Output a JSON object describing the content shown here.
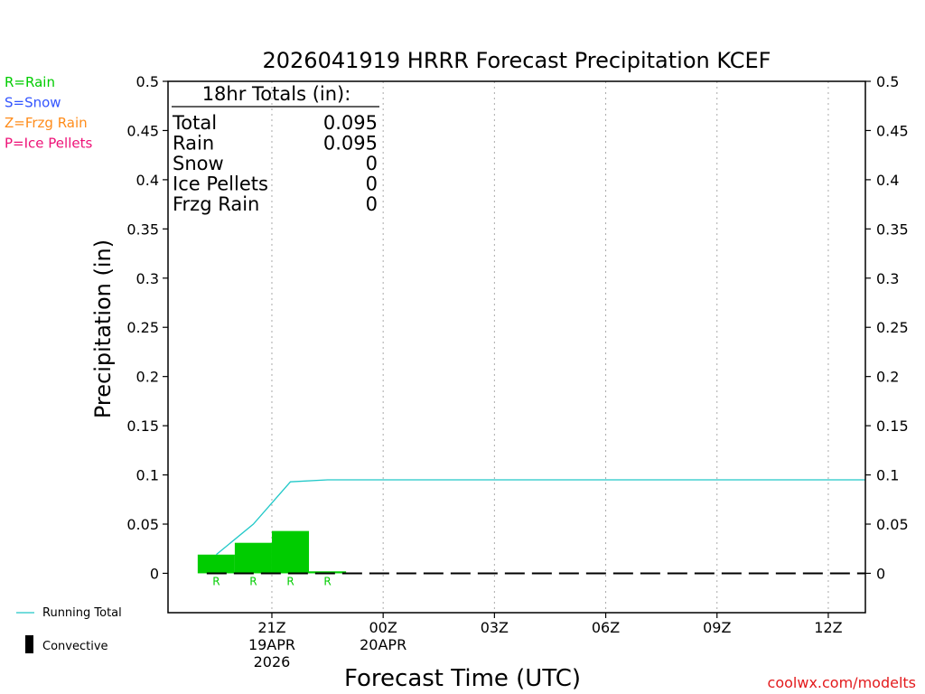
{
  "chart_data": {
    "type": "bar",
    "title": "2026041919 HRRR Forecast Precipitation KCEF",
    "xlabel": "Forecast Time (UTC)",
    "ylabel": "Precipitation (in)",
    "ylim": [
      -0.04,
      0.5
    ],
    "yticks": [
      0,
      0.05,
      0.1,
      0.15,
      0.2,
      0.25,
      0.3,
      0.35,
      0.4,
      0.45,
      0.5
    ],
    "ytick_labels": [
      "0",
      "0.05",
      "0.1",
      "0.15",
      "0.2",
      "0.25",
      "0.3",
      "0.35",
      "0.4",
      "0.45",
      "0.5"
    ],
    "x_unit": "hours after 19Z 19APR",
    "xlim": [
      -0.8,
      18
    ],
    "xticks": [
      {
        "hour": 2,
        "lines": [
          "21Z",
          "19APR",
          "2026"
        ]
      },
      {
        "hour": 5,
        "lines": [
          "00Z",
          "20APR"
        ]
      },
      {
        "hour": 8,
        "lines": [
          "03Z"
        ]
      },
      {
        "hour": 11,
        "lines": [
          "06Z"
        ]
      },
      {
        "hour": 14,
        "lines": [
          "09Z"
        ]
      },
      {
        "hour": 17,
        "lines": [
          "12Z"
        ]
      }
    ],
    "bars": [
      {
        "start": 0,
        "end": 1,
        "value": 0.019,
        "type": "R"
      },
      {
        "start": 1,
        "end": 2,
        "value": 0.031,
        "type": "R"
      },
      {
        "start": 2,
        "end": 3,
        "value": 0.043,
        "type": "R"
      },
      {
        "start": 3,
        "end": 4,
        "value": 0.002,
        "type": "R"
      }
    ],
    "running_total": {
      "name": "Running Total",
      "x": [
        0.5,
        1.5,
        2.5,
        3.5,
        4.5,
        18
      ],
      "y": [
        0.019,
        0.05,
        0.093,
        0.095,
        0.095,
        0.095
      ]
    },
    "convective_hours": [
      0,
      17
    ],
    "legend_left": [
      {
        "text": "R=Rain",
        "color": "#00cc00"
      },
      {
        "text": "S=Snow",
        "color": "#3355ff"
      },
      {
        "text": "Z=Frzg Rain",
        "color": "#ff8c1a"
      },
      {
        "text": "P=Ice Pellets",
        "color": "#ee1177"
      }
    ],
    "legend_bottom": {
      "running_total": "Running Total",
      "convective": "Convective"
    },
    "totals_box": {
      "header": "18hr Totals (in):",
      "rows": [
        {
          "label": "Total",
          "value": "0.095"
        },
        {
          "label": "Rain",
          "value": "0.095"
        },
        {
          "label": "Snow",
          "value": "0"
        },
        {
          "label": "Ice Pellets",
          "value": "0"
        },
        {
          "label": "Frzg Rain",
          "value": "0"
        }
      ]
    },
    "colors": {
      "rain": "#00cc00",
      "running_total": "#20c8c8",
      "grid": "#aaaaaa",
      "convective": "#000000"
    },
    "credit": "coolwx.com/modelts"
  }
}
